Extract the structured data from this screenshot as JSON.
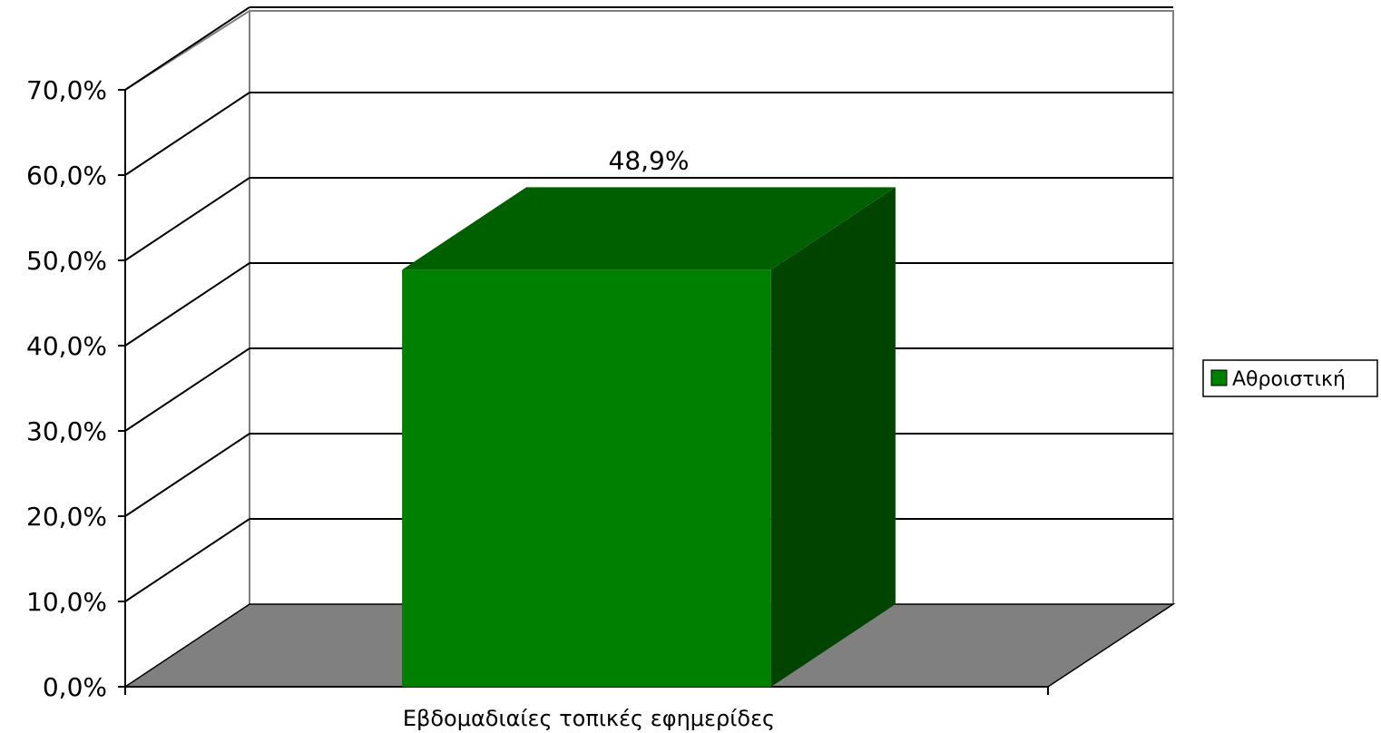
{
  "chart_data": {
    "type": "bar",
    "style": "3d-column",
    "categories": [
      "Εβδομαδιαίες τοπικές εφημερίδες"
    ],
    "series": [
      {
        "name": "Αθροιστική",
        "values": [
          48.9
        ],
        "color": "#008000"
      }
    ],
    "data_labels": [
      "48,9%"
    ],
    "y_ticks": [
      "0,0%",
      "10,0%",
      "20,0%",
      "30,0%",
      "40,0%",
      "50,0%",
      "60,0%",
      "70,0%"
    ],
    "ylim": [
      0,
      70
    ],
    "grid": true,
    "legend_position": "right",
    "title": "",
    "xlabel": "",
    "ylabel": ""
  },
  "colors": {
    "bar_front": "#008000",
    "bar_top": "#006000",
    "bar_side": "#004400",
    "floor": "#808080",
    "wall_border": "#808080",
    "gridline": "#000000"
  }
}
